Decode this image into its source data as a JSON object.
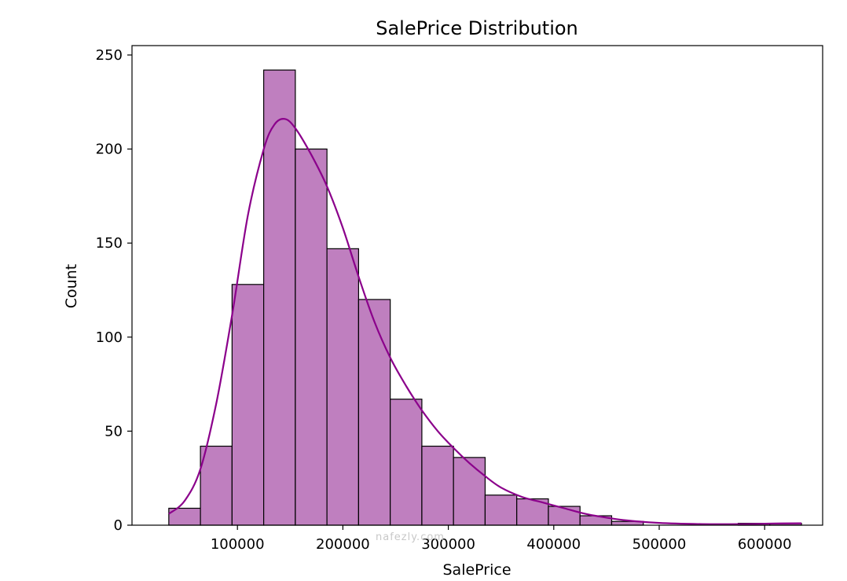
{
  "chart_data": {
    "type": "bar",
    "subtype": "histogram-with-kde",
    "title": "SalePrice Distribution",
    "xlabel": "SalePrice",
    "ylabel": "Count",
    "xlim": [
      0,
      655000
    ],
    "ylim": [
      0,
      255
    ],
    "xticks": [
      100000,
      200000,
      300000,
      400000,
      500000,
      600000
    ],
    "yticks": [
      0,
      50,
      100,
      150,
      200,
      250
    ],
    "grid": false,
    "bar_color": "#bf7fbf",
    "edge_color": "#000000",
    "kde_color": "#8b008b",
    "bins": [
      {
        "start": 34900,
        "end": 64900,
        "count": 9
      },
      {
        "start": 64900,
        "end": 94900,
        "count": 42
      },
      {
        "start": 94900,
        "end": 124900,
        "count": 128
      },
      {
        "start": 124900,
        "end": 154900,
        "count": 242
      },
      {
        "start": 154900,
        "end": 184900,
        "count": 200
      },
      {
        "start": 184900,
        "end": 214900,
        "count": 147
      },
      {
        "start": 214900,
        "end": 244900,
        "count": 120
      },
      {
        "start": 244900,
        "end": 274900,
        "count": 67
      },
      {
        "start": 274900,
        "end": 304900,
        "count": 42
      },
      {
        "start": 304900,
        "end": 334900,
        "count": 36
      },
      {
        "start": 334900,
        "end": 364900,
        "count": 16
      },
      {
        "start": 364900,
        "end": 394900,
        "count": 14
      },
      {
        "start": 394900,
        "end": 424900,
        "count": 10
      },
      {
        "start": 424900,
        "end": 454900,
        "count": 5
      },
      {
        "start": 454900,
        "end": 484900,
        "count": 2
      },
      {
        "start": 484900,
        "end": 514900,
        "count": 0
      },
      {
        "start": 514900,
        "end": 544900,
        "count": 0
      },
      {
        "start": 544900,
        "end": 574900,
        "count": 0
      },
      {
        "start": 574900,
        "end": 604900,
        "count": 1
      },
      {
        "start": 604900,
        "end": 634900,
        "count": 1
      }
    ],
    "kde": {
      "x": [
        34900,
        50000,
        65000,
        80000,
        95000,
        110000,
        125000,
        135000,
        145000,
        155000,
        170000,
        185000,
        200000,
        215000,
        230000,
        245000,
        260000,
        275000,
        290000,
        305000,
        320000,
        335000,
        350000,
        370000,
        390000,
        410000,
        430000,
        450000,
        470000,
        500000,
        540000,
        580000,
        610000,
        634900
      ],
      "y": [
        6,
        13,
        30,
        65,
        112,
        165,
        200,
        213,
        216,
        211,
        197,
        180,
        158,
        132,
        108,
        89,
        74,
        61,
        50,
        41,
        33,
        26,
        20,
        15,
        12,
        9,
        6,
        4,
        2.5,
        1.2,
        0.6,
        0.6,
        0.9,
        1
      ]
    }
  },
  "watermark": {
    "text": "nafezly.com"
  }
}
